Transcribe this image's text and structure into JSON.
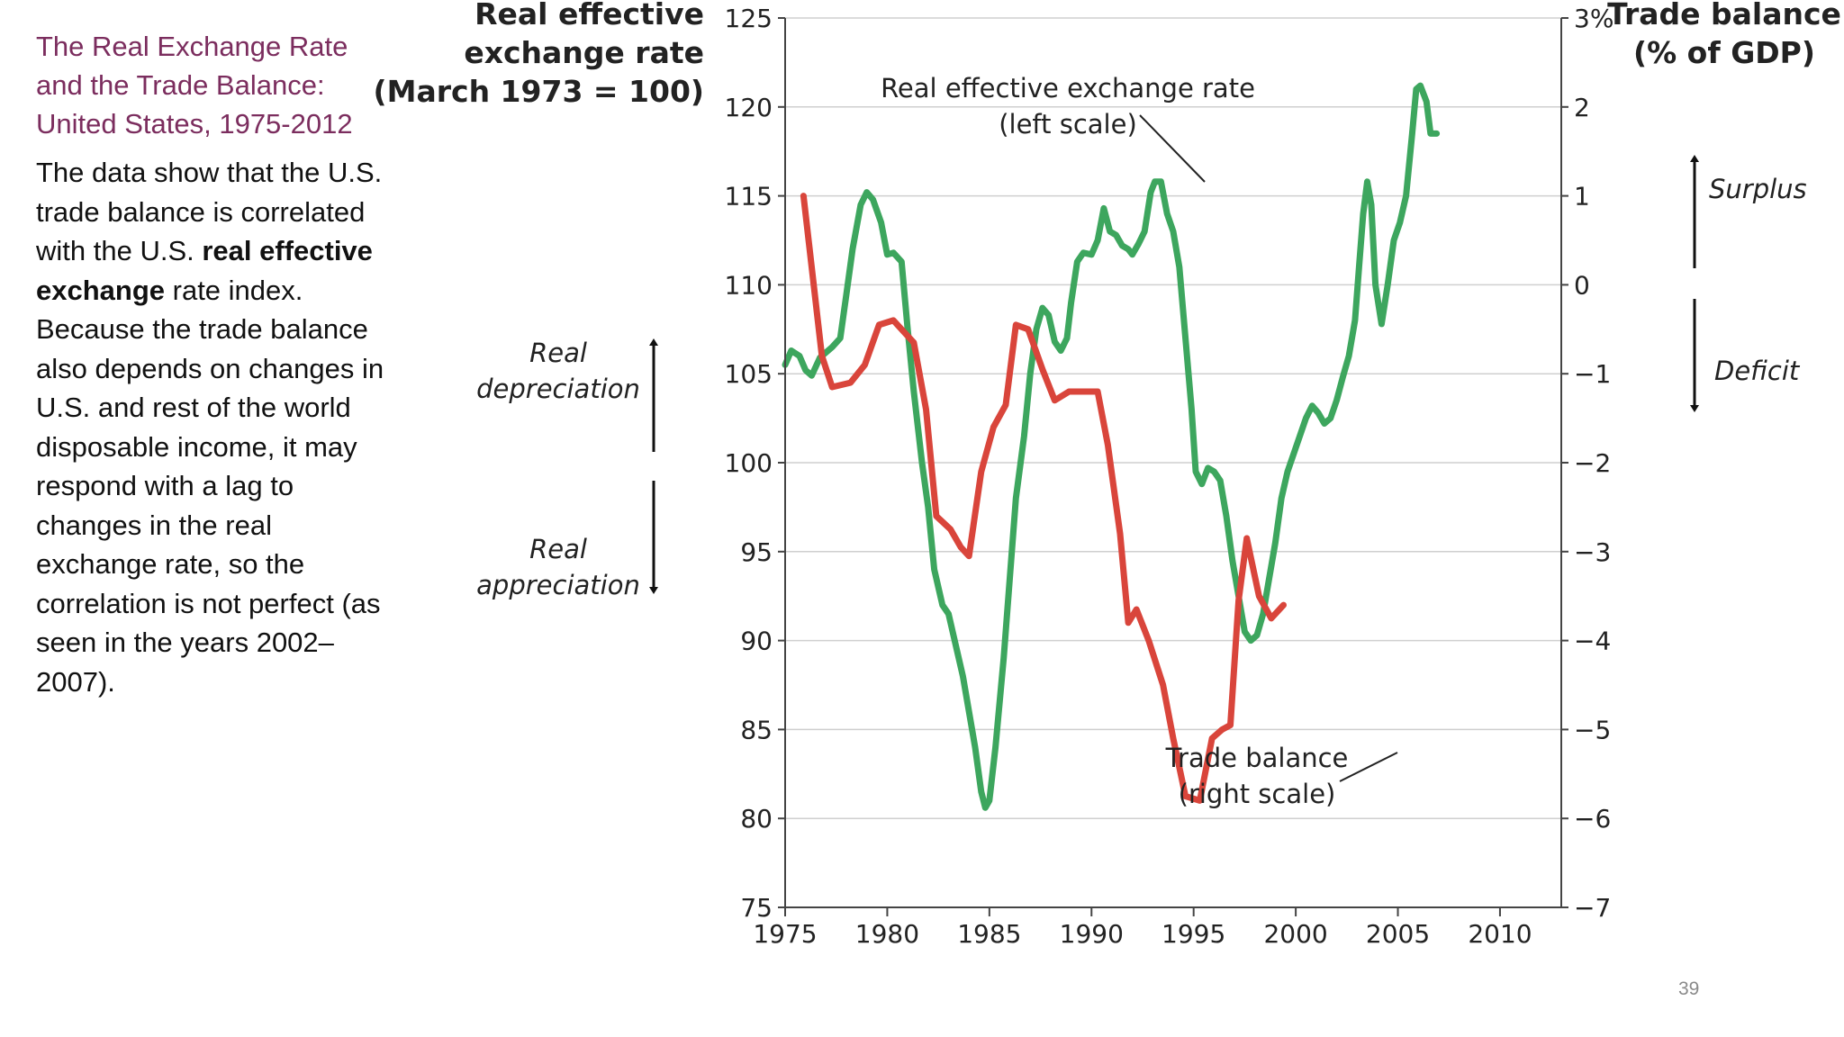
{
  "slide": {
    "title_lines": [
      "The Real Exchange Rate",
      "and the Trade Balance:",
      "United States, 1975-2012"
    ],
    "body_before": "The data show that the U.S. trade balance is correlated with the U.S. ",
    "body_bold": "real effective exchange",
    "body_after": " rate index. Because the trade balance also depends on changes in U.S. and rest of the world disposable income, it may respond with a lag to changes in the real exchange rate, so the correlation is not perfect (as seen in the years 2002–2007).",
    "page_number": "39"
  },
  "chart_data": {
    "type": "line",
    "left_axis": {
      "title_lines": [
        "Real effective",
        "exchange rate",
        "(March 1973 = 100)"
      ],
      "range": [
        75,
        125
      ],
      "ticks": [
        "75",
        "80",
        "85",
        "90",
        "95",
        "100",
        "105",
        "110",
        "115",
        "120",
        "125"
      ]
    },
    "right_axis": {
      "title_lines": [
        "Trade balance",
        "(% of GDP)"
      ],
      "range": [
        -7,
        3
      ],
      "ticks": [
        "−7",
        "−6",
        "−5",
        "−4",
        "−3",
        "−2",
        "−1",
        "0",
        "1",
        "2",
        "3%"
      ]
    },
    "x_axis": {
      "range": [
        1975,
        2013
      ],
      "ticks": [
        "1975",
        "1980",
        "1985",
        "1990",
        "1995",
        "2000",
        "2005",
        "2010"
      ]
    },
    "grid": true,
    "annotations": {
      "real_depreciation": [
        "Real",
        "depreciation"
      ],
      "real_appreciation": [
        "Real",
        "appreciation"
      ],
      "surplus": "Surplus",
      "deficit": "Deficit",
      "rer_label": [
        "Real effective exchange rate",
        "(left scale)"
      ],
      "tb_label": [
        "Trade balance",
        "(right scale)"
      ]
    },
    "series": [
      {
        "name": "Real effective exchange rate",
        "axis": "left",
        "color": "#3DA65E",
        "points": [
          [
            1975.0,
            105.5
          ],
          [
            1975.3,
            106.3
          ],
          [
            1975.7,
            106.0
          ],
          [
            1976.0,
            105.2
          ],
          [
            1976.3,
            104.9
          ],
          [
            1976.7,
            105.9
          ],
          [
            1977.0,
            106.2
          ],
          [
            1977.3,
            106.5
          ],
          [
            1977.7,
            107.0
          ],
          [
            1978.0,
            109.5
          ],
          [
            1978.3,
            112.0
          ],
          [
            1978.7,
            114.5
          ],
          [
            1979.0,
            115.2
          ],
          [
            1979.3,
            114.8
          ],
          [
            1979.7,
            113.5
          ],
          [
            1980.0,
            111.7
          ],
          [
            1980.3,
            111.8
          ],
          [
            1980.7,
            111.3
          ],
          [
            1981.0,
            107.5
          ],
          [
            1981.3,
            104.0
          ],
          [
            1981.7,
            100.0
          ],
          [
            1982.0,
            97.5
          ],
          [
            1982.3,
            94.0
          ],
          [
            1982.7,
            92.0
          ],
          [
            1983.0,
            91.5
          ],
          [
            1983.3,
            90.0
          ],
          [
            1983.7,
            88.0
          ],
          [
            1984.0,
            86.0
          ],
          [
            1984.3,
            84.0
          ],
          [
            1984.6,
            81.5
          ],
          [
            1984.8,
            80.6
          ],
          [
            1985.0,
            81.0
          ],
          [
            1985.3,
            84.0
          ],
          [
            1985.7,
            89.0
          ],
          [
            1986.0,
            93.5
          ],
          [
            1986.3,
            98.0
          ],
          [
            1986.7,
            101.5
          ],
          [
            1987.0,
            105.0
          ],
          [
            1987.3,
            107.5
          ],
          [
            1987.6,
            108.7
          ],
          [
            1987.9,
            108.3
          ],
          [
            1988.2,
            106.8
          ],
          [
            1988.5,
            106.3
          ],
          [
            1988.8,
            107.0
          ],
          [
            1989.0,
            109.0
          ],
          [
            1989.3,
            111.3
          ],
          [
            1989.6,
            111.8
          ],
          [
            1990.0,
            111.7
          ],
          [
            1990.3,
            112.5
          ],
          [
            1990.6,
            114.3
          ],
          [
            1990.9,
            113.0
          ],
          [
            1991.2,
            112.8
          ],
          [
            1991.5,
            112.2
          ],
          [
            1991.8,
            112.0
          ],
          [
            1992.0,
            111.7
          ],
          [
            1992.3,
            112.3
          ],
          [
            1992.6,
            113.0
          ],
          [
            1992.9,
            115.2
          ],
          [
            1993.1,
            115.8
          ],
          [
            1993.4,
            115.8
          ],
          [
            1993.7,
            114.0
          ],
          [
            1994.0,
            113.0
          ],
          [
            1994.3,
            111.0
          ],
          [
            1994.6,
            107.0
          ],
          [
            1994.9,
            103.0
          ],
          [
            1995.1,
            99.5
          ],
          [
            1995.4,
            98.8
          ],
          [
            1995.7,
            99.7
          ],
          [
            1996.0,
            99.5
          ],
          [
            1996.3,
            99.0
          ],
          [
            1996.6,
            97.0
          ],
          [
            1996.9,
            94.5
          ],
          [
            1997.2,
            92.5
          ],
          [
            1997.5,
            90.5
          ],
          [
            1997.8,
            90.0
          ],
          [
            1998.1,
            90.3
          ],
          [
            1998.4,
            91.5
          ],
          [
            1998.7,
            93.5
          ],
          [
            1999.0,
            95.5
          ],
          [
            1999.3,
            98.0
          ],
          [
            1999.6,
            99.5
          ],
          [
            1999.9,
            100.5
          ],
          [
            2000.2,
            101.5
          ],
          [
            2000.5,
            102.5
          ],
          [
            2000.8,
            103.2
          ],
          [
            2001.1,
            102.8
          ],
          [
            2001.4,
            102.2
          ],
          [
            2001.7,
            102.5
          ],
          [
            2002.0,
            103.5
          ],
          [
            2002.3,
            104.8
          ],
          [
            2002.6,
            106.0
          ],
          [
            2002.9,
            108.0
          ],
          [
            2003.1,
            111.0
          ],
          [
            2003.3,
            114.0
          ],
          [
            2003.5,
            115.8
          ],
          [
            2003.7,
            114.5
          ],
          [
            2003.9,
            110.0
          ],
          [
            2004.2,
            107.8
          ],
          [
            2004.5,
            110.0
          ],
          [
            2004.8,
            112.5
          ],
          [
            2005.1,
            113.5
          ],
          [
            2005.4,
            115.0
          ],
          [
            2005.7,
            118.5
          ],
          [
            2005.9,
            121.0
          ],
          [
            2006.1,
            121.2
          ],
          [
            2006.4,
            120.3
          ],
          [
            2006.6,
            118.5
          ],
          [
            2006.9,
            118.5
          ]
        ]
      },
      {
        "name": "Trade balance",
        "axis": "right",
        "color": "#D9453B",
        "points": [
          [
            1975.9,
            1.0
          ],
          [
            1976.8,
            -0.8
          ],
          [
            1977.3,
            -1.15
          ],
          [
            1978.2,
            -1.1
          ],
          [
            1978.9,
            -0.9
          ],
          [
            1979.6,
            -0.45
          ],
          [
            1980.3,
            -0.4
          ],
          [
            1980.9,
            -0.55
          ],
          [
            1981.3,
            -0.65
          ],
          [
            1981.9,
            -1.4
          ],
          [
            1982.4,
            -2.6
          ],
          [
            1983.1,
            -2.75
          ],
          [
            1983.6,
            -2.95
          ],
          [
            1984.0,
            -3.05
          ],
          [
            1984.6,
            -2.1
          ],
          [
            1985.2,
            -1.6
          ],
          [
            1985.8,
            -1.35
          ],
          [
            1986.3,
            -0.45
          ],
          [
            1986.9,
            -0.5
          ],
          [
            1987.6,
            -0.95
          ],
          [
            1988.2,
            -1.3
          ],
          [
            1988.9,
            -1.2
          ],
          [
            1990.0,
            -1.2
          ],
          [
            1990.3,
            -1.2
          ],
          [
            1990.8,
            -1.8
          ],
          [
            1991.4,
            -2.8
          ],
          [
            1991.8,
            -3.8
          ],
          [
            1992.2,
            -3.65
          ],
          [
            1992.8,
            -4.0
          ],
          [
            1993.5,
            -4.5
          ],
          [
            1994.0,
            -5.1
          ],
          [
            1994.6,
            -5.75
          ],
          [
            1995.3,
            -5.8
          ],
          [
            1995.9,
            -5.1
          ],
          [
            1996.4,
            -5.0
          ],
          [
            1996.8,
            -4.95
          ],
          [
            1997.2,
            -3.55
          ],
          [
            1997.6,
            -2.85
          ],
          [
            1998.2,
            -3.5
          ],
          [
            1998.8,
            -3.75
          ],
          [
            1999.4,
            -3.6
          ]
        ]
      }
    ]
  }
}
